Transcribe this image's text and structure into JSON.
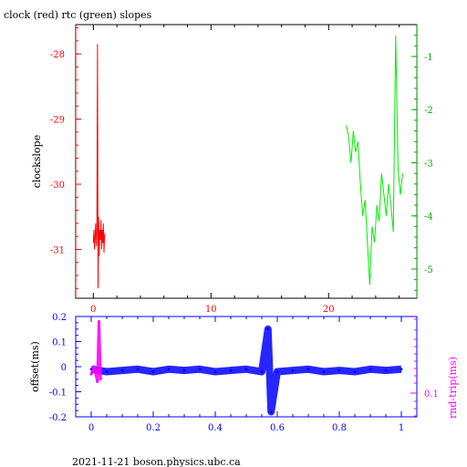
{
  "title": "clock (red) rtc (green) slopes",
  "footer": "2021-11-21 boson.physics.ubc.ca",
  "colors": {
    "red": "#ff0000",
    "green": "#00ee00",
    "blue": "#0000ff",
    "magenta": "#ff00ff",
    "black": "#000000"
  },
  "chart_data": [
    {
      "type": "line",
      "title": "clock (red) rtc (green) slopes",
      "ylabel": "clockslope",
      "xlim": [
        -1.5,
        27.5
      ],
      "ylim": [
        -31.75,
        -27.55
      ],
      "y2lim": [
        -5.55,
        -0.4
      ],
      "grid": false,
      "x_ticks": [
        0,
        10,
        20
      ],
      "y_ticks": [
        -28,
        -29,
        -30,
        -31
      ],
      "y2_ticks": [
        -1,
        -2,
        -3,
        -4,
        -5
      ],
      "x_tick_labels": [
        "0",
        "10",
        "20"
      ],
      "y_tick_labels": [
        "-28",
        "-29",
        "-30",
        "-31"
      ],
      "y2_tick_labels": [
        "-1",
        "-2",
        "-3",
        "-4",
        "-5"
      ],
      "series": [
        {
          "name": "clock",
          "axis": "left",
          "color": "#ff0000",
          "x": [
            0.0,
            0.05,
            0.1,
            0.15,
            0.2,
            0.25,
            0.3,
            0.35,
            0.4,
            0.45,
            0.5,
            0.55,
            0.6,
            0.65,
            0.7,
            0.75,
            0.8,
            0.85,
            0.9,
            0.95,
            1.0
          ],
          "y": [
            -30.9,
            -30.7,
            -31.0,
            -30.8,
            -30.6,
            -30.95,
            -30.75,
            -27.85,
            -31.6,
            -30.5,
            -31.1,
            -30.7,
            -30.85,
            -30.55,
            -31.0,
            -30.7,
            -30.9,
            -30.6,
            -31.05,
            -30.8,
            -30.75
          ]
        },
        {
          "name": "rtc",
          "axis": "right",
          "color": "#00ee00",
          "x": [
            21.5,
            21.7,
            21.9,
            22.1,
            22.3,
            22.5,
            22.7,
            22.9,
            23.1,
            23.3,
            23.5,
            23.7,
            23.9,
            24.1,
            24.3,
            24.5,
            24.7,
            24.9,
            25.1,
            25.3,
            25.5,
            25.7,
            25.9,
            26.1,
            26.3
          ],
          "y": [
            -2.3,
            -2.5,
            -3.0,
            -2.4,
            -2.8,
            -2.6,
            -3.4,
            -4.0,
            -3.7,
            -4.5,
            -5.3,
            -4.2,
            -4.5,
            -3.8,
            -4.1,
            -3.2,
            -3.6,
            -4.0,
            -3.4,
            -3.8,
            -4.3,
            -0.6,
            -3.1,
            -3.6,
            -3.2
          ]
        }
      ]
    },
    {
      "type": "scatter",
      "ylabel": "offset(ms)",
      "y2label": "rnd-trip(ms)",
      "xlim": [
        -0.05,
        1.05
      ],
      "ylim": [
        -0.2,
        0.2
      ],
      "grid": false,
      "x_ticks": [
        0,
        0.2,
        0.4,
        0.6,
        0.8,
        1
      ],
      "x_tick_labels": [
        "0",
        "0.2",
        "0.4",
        "0.6",
        "0.8",
        "1"
      ],
      "y_ticks": [
        0.2,
        0.1,
        0,
        -0.1,
        -0.2
      ],
      "y_tick_labels": [
        "0.2",
        "0.1",
        "0",
        "-0.1",
        "-0.2"
      ],
      "y2_tick_labels": [
        "0.1"
      ],
      "series": [
        {
          "name": "offset",
          "color": "#0000ff",
          "x": [
            0,
            0.05,
            0.1,
            0.15,
            0.2,
            0.25,
            0.3,
            0.35,
            0.4,
            0.45,
            0.5,
            0.55,
            0.57,
            0.58,
            0.6,
            0.65,
            0.7,
            0.75,
            0.8,
            0.85,
            0.9,
            0.95,
            1.0
          ],
          "y": [
            -0.01,
            -0.02,
            -0.015,
            -0.01,
            -0.02,
            -0.01,
            -0.015,
            -0.01,
            -0.02,
            -0.015,
            -0.01,
            -0.02,
            0.15,
            -0.18,
            -0.02,
            -0.015,
            -0.01,
            -0.02,
            -0.015,
            -0.02,
            -0.01,
            -0.015,
            -0.01
          ]
        },
        {
          "name": "rnd-trip",
          "color": "#ff00ff",
          "x": [
            0,
            0.01,
            0.02,
            0.025,
            0.03
          ],
          "y": [
            -0.03,
            0.0,
            -0.06,
            0.18,
            -0.05
          ]
        }
      ]
    }
  ]
}
